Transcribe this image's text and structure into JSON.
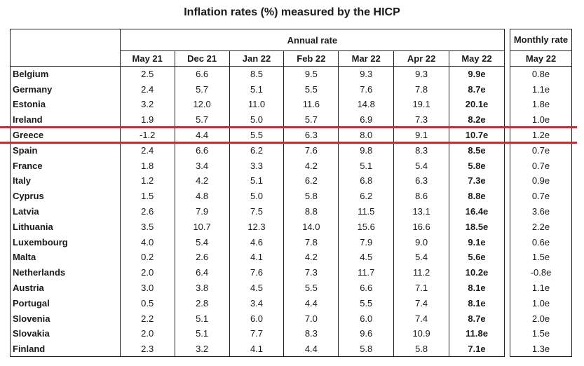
{
  "title": "Inflation rates (%) measured by the HICP",
  "annual_header": "Annual rate",
  "monthly_header": "Monthly rate",
  "columns": [
    "May 21",
    "Dec 21",
    "Jan 22",
    "Feb 22",
    "Mar 22",
    "Apr 22",
    "May 22"
  ],
  "monthly_column": "May 22",
  "rows": [
    {
      "country": "Belgium",
      "values": [
        "2.5",
        "6.6",
        "8.5",
        "9.5",
        "9.3",
        "9.3",
        "9.9e"
      ],
      "monthly": "0.8e"
    },
    {
      "country": "Germany",
      "values": [
        "2.4",
        "5.7",
        "5.1",
        "5.5",
        "7.6",
        "7.8",
        "8.7e"
      ],
      "monthly": "1.1e"
    },
    {
      "country": "Estonia",
      "values": [
        "3.2",
        "12.0",
        "11.0",
        "11.6",
        "14.8",
        "19.1",
        "20.1e"
      ],
      "monthly": "1.8e"
    },
    {
      "country": "Ireland",
      "values": [
        "1.9",
        "5.7",
        "5.0",
        "5.7",
        "6.9",
        "7.3",
        "8.2e"
      ],
      "monthly": "1.0e"
    },
    {
      "country": "Greece",
      "values": [
        "-1.2",
        "4.4",
        "5.5",
        "6.3",
        "8.0",
        "9.1",
        "10.7e"
      ],
      "monthly": "1.2e"
    },
    {
      "country": "Spain",
      "values": [
        "2.4",
        "6.6",
        "6.2",
        "7.6",
        "9.8",
        "8.3",
        "8.5e"
      ],
      "monthly": "0.7e"
    },
    {
      "country": "France",
      "values": [
        "1.8",
        "3.4",
        "3.3",
        "4.2",
        "5.1",
        "5.4",
        "5.8e"
      ],
      "monthly": "0.7e"
    },
    {
      "country": "Italy",
      "values": [
        "1.2",
        "4.2",
        "5.1",
        "6.2",
        "6.8",
        "6.3",
        "7.3e"
      ],
      "monthly": "0.9e"
    },
    {
      "country": "Cyprus",
      "values": [
        "1.5",
        "4.8",
        "5.0",
        "5.8",
        "6.2",
        "8.6",
        "8.8e"
      ],
      "monthly": "0.7e"
    },
    {
      "country": "Latvia",
      "values": [
        "2.6",
        "7.9",
        "7.5",
        "8.8",
        "11.5",
        "13.1",
        "16.4e"
      ],
      "monthly": "3.6e"
    },
    {
      "country": "Lithuania",
      "values": [
        "3.5",
        "10.7",
        "12.3",
        "14.0",
        "15.6",
        "16.6",
        "18.5e"
      ],
      "monthly": "2.2e"
    },
    {
      "country": "Luxembourg",
      "values": [
        "4.0",
        "5.4",
        "4.6",
        "7.8",
        "7.9",
        "9.0",
        "9.1e"
      ],
      "monthly": "0.6e"
    },
    {
      "country": "Malta",
      "values": [
        "0.2",
        "2.6",
        "4.1",
        "4.2",
        "4.5",
        "5.4",
        "5.6e"
      ],
      "monthly": "1.5e"
    },
    {
      "country": "Netherlands",
      "values": [
        "2.0",
        "6.4",
        "7.6",
        "7.3",
        "11.7",
        "11.2",
        "10.2e"
      ],
      "monthly": "-0.8e"
    },
    {
      "country": "Austria",
      "values": [
        "3.0",
        "3.8",
        "4.5",
        "5.5",
        "6.6",
        "7.1",
        "8.1e"
      ],
      "monthly": "1.1e"
    },
    {
      "country": "Portugal",
      "values": [
        "0.5",
        "2.8",
        "3.4",
        "4.4",
        "5.5",
        "7.4",
        "8.1e"
      ],
      "monthly": "1.0e"
    },
    {
      "country": "Slovenia",
      "values": [
        "2.2",
        "5.1",
        "6.0",
        "7.0",
        "6.0",
        "7.4",
        "8.7e"
      ],
      "monthly": "2.0e"
    },
    {
      "country": "Slovakia",
      "values": [
        "2.0",
        "5.1",
        "7.7",
        "8.3",
        "9.6",
        "10.9",
        "11.8e"
      ],
      "monthly": "1.5e"
    },
    {
      "country": "Finland",
      "values": [
        "2.3",
        "3.2",
        "4.1",
        "4.4",
        "5.8",
        "5.8",
        "7.1e"
      ],
      "monthly": "1.3e"
    }
  ],
  "highlight": {
    "row": "Greece",
    "color": "#b5343c"
  }
}
